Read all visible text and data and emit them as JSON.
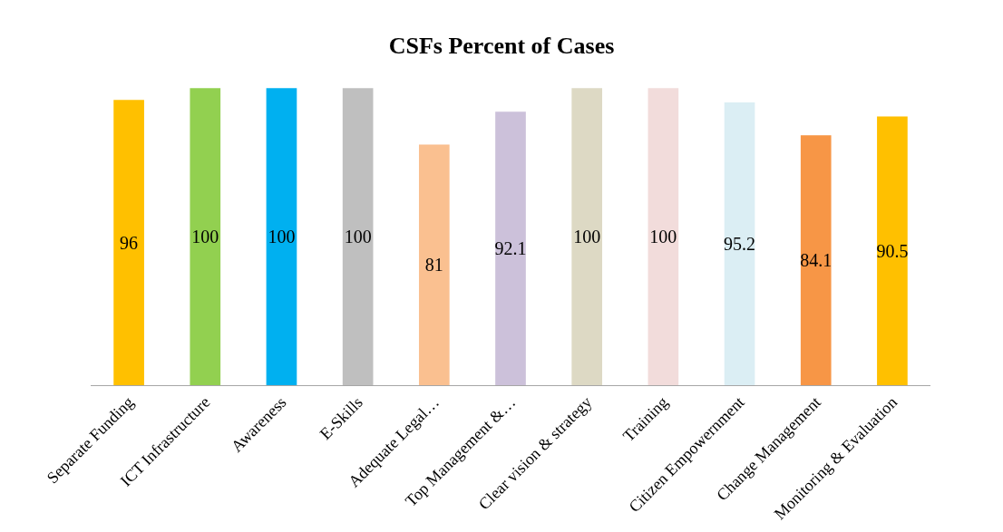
{
  "chart_data": {
    "type": "bar",
    "title": "CSFs Percent of Cases",
    "categories": [
      "Separate Funding",
      "ICT Infrastructure",
      "Awareness",
      "E-Skills",
      "Adequate Legal…",
      "Top Management &…",
      "Clear vision & strategy",
      "Training",
      "Citizen Empowernment",
      "Change Management",
      "Monitoring & Evaluation"
    ],
    "values": [
      96,
      100,
      100,
      100,
      81,
      92.1,
      100,
      100,
      95.2,
      84.1,
      90.5
    ],
    "colors": [
      "#ffc000",
      "#92d050",
      "#00b0f0",
      "#bfbfbf",
      "#fac090",
      "#ccc1da",
      "#ddd9c4",
      "#f2dcdb",
      "#dbeef4",
      "#f79646",
      "#ffc000"
    ],
    "data_labels": true
  }
}
